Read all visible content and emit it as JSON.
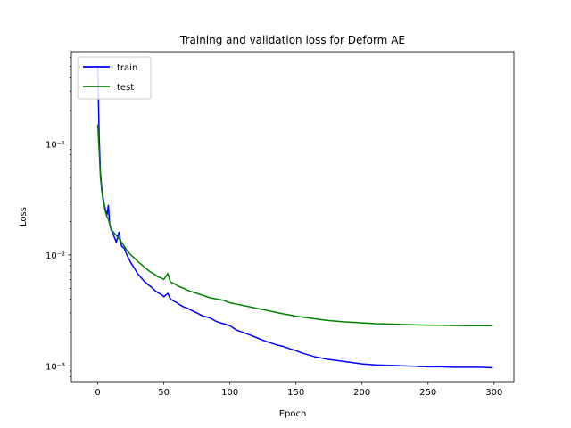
{
  "chart_data": {
    "type": "line",
    "title": "Training and validation loss for Deform AE",
    "xlabel": "Epoch",
    "ylabel": "Loss",
    "xlim": [
      -20,
      315
    ],
    "ylim": [
      0.00072,
      0.68
    ],
    "yscale": "log",
    "grid": false,
    "legend_position": "upper-left",
    "x_ticks": [
      0,
      50,
      100,
      150,
      200,
      250,
      300
    ],
    "x_tick_labels": [
      "0",
      "50",
      "100",
      "150",
      "200",
      "250",
      "300"
    ],
    "y_ticks": [
      0.001,
      0.01,
      0.1
    ],
    "y_tick_labels": [
      "10⁻³",
      "10⁻²",
      "10⁻¹"
    ],
    "series": [
      {
        "name": "train",
        "color": "#0000ff",
        "points": [
          [
            0,
            0.5
          ],
          [
            1,
            0.12
          ],
          [
            2,
            0.055
          ],
          [
            3,
            0.04
          ],
          [
            4,
            0.033
          ],
          [
            5,
            0.028
          ],
          [
            6,
            0.025
          ],
          [
            7,
            0.023
          ],
          [
            8,
            0.028
          ],
          [
            9,
            0.019
          ],
          [
            10,
            0.017
          ],
          [
            12,
            0.015
          ],
          [
            14,
            0.013
          ],
          [
            16,
            0.016
          ],
          [
            18,
            0.012
          ],
          [
            20,
            0.0115
          ],
          [
            22,
            0.01
          ],
          [
            25,
            0.0085
          ],
          [
            28,
            0.0075
          ],
          [
            30,
            0.0068
          ],
          [
            33,
            0.0062
          ],
          [
            35,
            0.0058
          ],
          [
            38,
            0.0054
          ],
          [
            40,
            0.0052
          ],
          [
            43,
            0.0048
          ],
          [
            45,
            0.0046
          ],
          [
            48,
            0.0044
          ],
          [
            50,
            0.0042
          ],
          [
            53,
            0.0045
          ],
          [
            55,
            0.004
          ],
          [
            58,
            0.0038
          ],
          [
            60,
            0.0037
          ],
          [
            63,
            0.0035
          ],
          [
            65,
            0.0034
          ],
          [
            68,
            0.0033
          ],
          [
            70,
            0.0032
          ],
          [
            75,
            0.003
          ],
          [
            80,
            0.0028
          ],
          [
            85,
            0.0027
          ],
          [
            90,
            0.0025
          ],
          [
            95,
            0.0024
          ],
          [
            100,
            0.0023
          ],
          [
            105,
            0.0021
          ],
          [
            110,
            0.002
          ],
          [
            115,
            0.0019
          ],
          [
            120,
            0.0018
          ],
          [
            125,
            0.0017
          ],
          [
            130,
            0.00162
          ],
          [
            135,
            0.00155
          ],
          [
            140,
            0.0015
          ],
          [
            145,
            0.00143
          ],
          [
            150,
            0.00137
          ],
          [
            155,
            0.0013
          ],
          [
            160,
            0.00125
          ],
          [
            165,
            0.0012
          ],
          [
            170,
            0.00117
          ],
          [
            175,
            0.00114
          ],
          [
            180,
            0.00112
          ],
          [
            185,
            0.0011
          ],
          [
            190,
            0.00108
          ],
          [
            195,
            0.00106
          ],
          [
            200,
            0.00104
          ],
          [
            210,
            0.00102
          ],
          [
            220,
            0.00101
          ],
          [
            230,
            0.001
          ],
          [
            240,
            0.00099
          ],
          [
            250,
            0.00098
          ],
          [
            260,
            0.00098
          ],
          [
            270,
            0.00097
          ],
          [
            280,
            0.00097
          ],
          [
            290,
            0.00097
          ],
          [
            299,
            0.00096
          ]
        ]
      },
      {
        "name": "test",
        "color": "#008000",
        "points": [
          [
            0,
            0.15
          ],
          [
            1,
            0.09
          ],
          [
            2,
            0.05
          ],
          [
            3,
            0.038
          ],
          [
            4,
            0.031
          ],
          [
            5,
            0.027
          ],
          [
            6,
            0.024
          ],
          [
            7,
            0.022
          ],
          [
            8,
            0.021
          ],
          [
            9,
            0.019
          ],
          [
            10,
            0.017
          ],
          [
            12,
            0.016
          ],
          [
            14,
            0.015
          ],
          [
            16,
            0.014
          ],
          [
            18,
            0.013
          ],
          [
            20,
            0.012
          ],
          [
            22,
            0.011
          ],
          [
            25,
            0.01
          ],
          [
            28,
            0.0093
          ],
          [
            30,
            0.0088
          ],
          [
            33,
            0.0082
          ],
          [
            35,
            0.0078
          ],
          [
            38,
            0.0073
          ],
          [
            40,
            0.007
          ],
          [
            43,
            0.0067
          ],
          [
            45,
            0.0064
          ],
          [
            48,
            0.0062
          ],
          [
            50,
            0.006
          ],
          [
            53,
            0.0068
          ],
          [
            55,
            0.0057
          ],
          [
            58,
            0.0055
          ],
          [
            60,
            0.0053
          ],
          [
            63,
            0.0051
          ],
          [
            65,
            0.005
          ],
          [
            68,
            0.0048
          ],
          [
            70,
            0.0047
          ],
          [
            75,
            0.0045
          ],
          [
            80,
            0.0043
          ],
          [
            85,
            0.0041
          ],
          [
            90,
            0.004
          ],
          [
            95,
            0.0039
          ],
          [
            100,
            0.0037
          ],
          [
            105,
            0.0036
          ],
          [
            110,
            0.0035
          ],
          [
            115,
            0.0034
          ],
          [
            120,
            0.0033
          ],
          [
            125,
            0.00322
          ],
          [
            130,
            0.00312
          ],
          [
            135,
            0.00303
          ],
          [
            140,
            0.00295
          ],
          [
            145,
            0.00288
          ],
          [
            150,
            0.0028
          ],
          [
            155,
            0.00275
          ],
          [
            160,
            0.0027
          ],
          [
            165,
            0.00265
          ],
          [
            170,
            0.0026
          ],
          [
            175,
            0.00256
          ],
          [
            180,
            0.00253
          ],
          [
            185,
            0.0025
          ],
          [
            190,
            0.00248
          ],
          [
            195,
            0.00246
          ],
          [
            200,
            0.00244
          ],
          [
            210,
            0.0024
          ],
          [
            220,
            0.00238
          ],
          [
            230,
            0.00236
          ],
          [
            240,
            0.00234
          ],
          [
            250,
            0.00233
          ],
          [
            260,
            0.00232
          ],
          [
            270,
            0.00231
          ],
          [
            280,
            0.0023
          ],
          [
            290,
            0.0023
          ],
          [
            299,
            0.0023
          ]
        ]
      }
    ]
  }
}
